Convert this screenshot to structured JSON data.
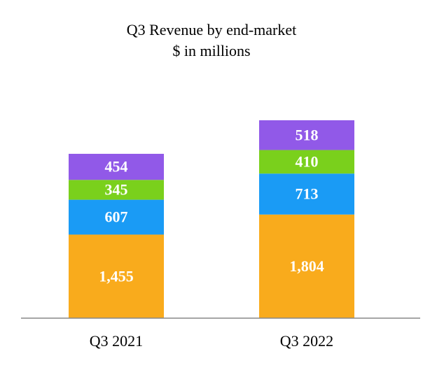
{
  "chart_data": {
    "type": "stacked_bar",
    "title": "Q3 Revenue by end-market",
    "subtitle": "$ in millions",
    "categories": [
      "Q3 2021",
      "Q3 2022"
    ],
    "series": [
      {
        "color": "#f9ab1c",
        "values": [
          1455,
          1804
        ],
        "value_labels": [
          "1,455",
          "1,804"
        ]
      },
      {
        "color": "#1a9bf5",
        "values": [
          607,
          713
        ]
      },
      {
        "color": "#7ad01c",
        "values": [
          345,
          410
        ]
      },
      {
        "color": "#9159e8",
        "values": [
          454,
          518
        ]
      }
    ]
  }
}
